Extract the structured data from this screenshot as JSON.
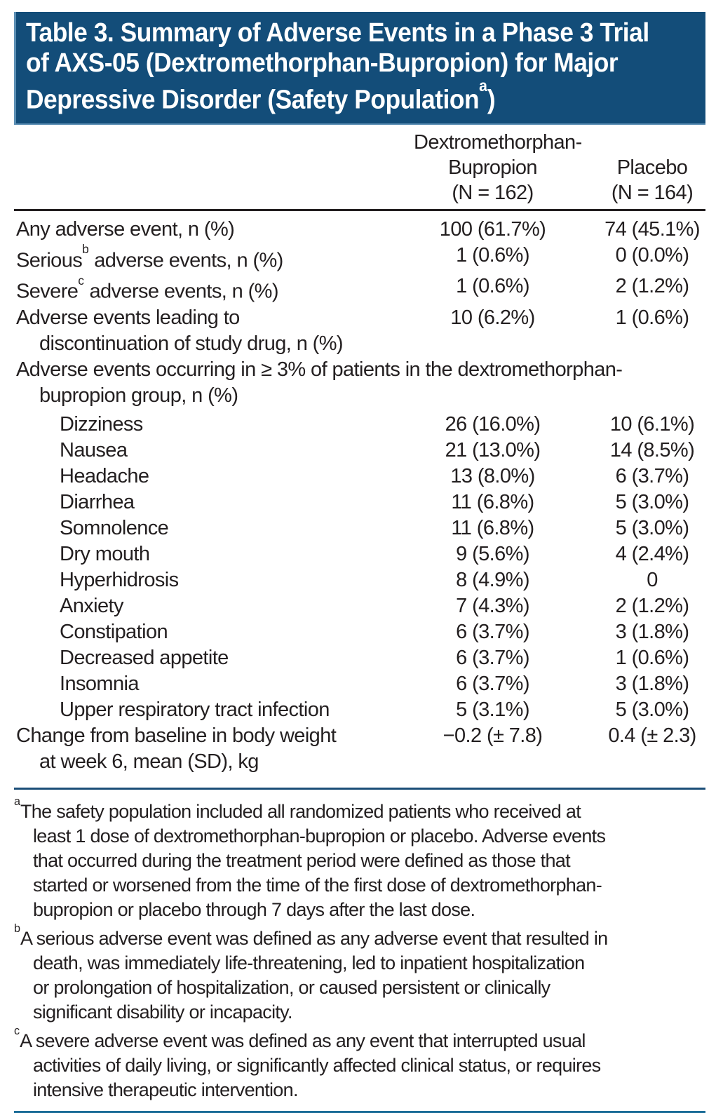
{
  "title": {
    "line1": "Table 3. Summary of Adverse Events in a Phase 3 Trial",
    "line2": "of AXS-05 (Dextromethorphan-Bupropion) for Major",
    "line3_pre": "Depressive Disorder (Safety Population",
    "line3_sup": "a",
    "line3_post": ")"
  },
  "columns": {
    "drug": {
      "line1": "Dextromethorphan-",
      "line2": "Bupropion",
      "line3": "(N = 162)"
    },
    "placebo": {
      "line1": "Placebo",
      "line2": "(N = 164)"
    }
  },
  "table": {
    "rows": [
      {
        "label": "Any adverse event, n (%)",
        "drug": "100 (61.7%)",
        "placebo": "74 (45.1%)"
      },
      {
        "label_pre": "Serious",
        "sup": "b",
        "label_post": " adverse events, n (%)",
        "drug": "1 (0.6%)",
        "placebo": "0 (0.0%)"
      },
      {
        "label_pre": "Severe",
        "sup": "c",
        "label_post": " adverse events, n (%)",
        "drug": "1 (0.6%)",
        "placebo": "2 (1.2%)"
      },
      {
        "label": "Adverse events leading to",
        "label2": "discontinuation of study drug, n (%)",
        "drug": "10 (6.2%)",
        "placebo": "1 (0.6%)"
      },
      {
        "label": "Adverse events occurring in ≥ 3% of patients in the dextromethorphan-",
        "label2": "bupropion group, n (%)"
      },
      {
        "label": "Dizziness",
        "drug": "26 (16.0%)",
        "placebo": "10 (6.1%)"
      },
      {
        "label": "Nausea",
        "drug": "21 (13.0%)",
        "placebo": "14 (8.5%)"
      },
      {
        "label": "Headache",
        "drug": "13 (8.0%)",
        "placebo": "6 (3.7%)"
      },
      {
        "label": "Diarrhea",
        "drug": "11 (6.8%)",
        "placebo": "5 (3.0%)"
      },
      {
        "label": "Somnolence",
        "drug": "11 (6.8%)",
        "placebo": "5 (3.0%)"
      },
      {
        "label": "Dry mouth",
        "drug": "9 (5.6%)",
        "placebo": "4 (2.4%)"
      },
      {
        "label": "Hyperhidrosis",
        "drug": "8 (4.9%)",
        "placebo": "0"
      },
      {
        "label": "Anxiety",
        "drug": "7 (4.3%)",
        "placebo": "2 (1.2%)"
      },
      {
        "label": "Constipation",
        "drug": "6 (3.7%)",
        "placebo": "3 (1.8%)"
      },
      {
        "label": "Decreased appetite",
        "drug": "6 (3.7%)",
        "placebo": "1 (0.6%)"
      },
      {
        "label": "Insomnia",
        "drug": "6 (3.7%)",
        "placebo": "3 (1.8%)"
      },
      {
        "label": "Upper respiratory tract infection",
        "drug": "5 (3.1%)",
        "placebo": "5 (3.0%)"
      },
      {
        "label": "Change from baseline in body weight",
        "label2": "at week 6, mean (SD), kg",
        "drug": "−0.2 (± 7.8)",
        "placebo": "0.4 (± 2.3)"
      }
    ]
  },
  "footnotes": [
    {
      "sup": "a",
      "lines": [
        "The safety population included all randomized patients who received at",
        "least 1 dose of dextromethorphan-bupropion or placebo. Adverse events",
        "that occurred during the treatment period were defined as those that",
        "started or worsened from the time of the first dose of dextromethorphan-",
        "bupropion or placebo through 7 days after the last dose."
      ]
    },
    {
      "sup": "b",
      "lines": [
        "A serious adverse event was defined as any adverse event that resulted in",
        "death, was immediately life-threatening, led to inpatient hospitalization",
        "or prolongation of hospitalization, or caused persistent or clinically",
        "significant disability or incapacity."
      ]
    },
    {
      "sup": "c",
      "lines": [
        "A severe adverse event was defined as any event that interrupted usual",
        "activities of daily living, or significantly affected clinical status, or requires",
        "intensive therapeutic intervention."
      ]
    }
  ],
  "colors": {
    "title_band": "#134d79",
    "band_edge": "#5c8fb4",
    "header_rule": "#231f20",
    "footnote_rule": "#1b4e78",
    "bottom_rule": "#1c6d98",
    "text": "#231f20",
    "title_text": "#ffffff"
  }
}
